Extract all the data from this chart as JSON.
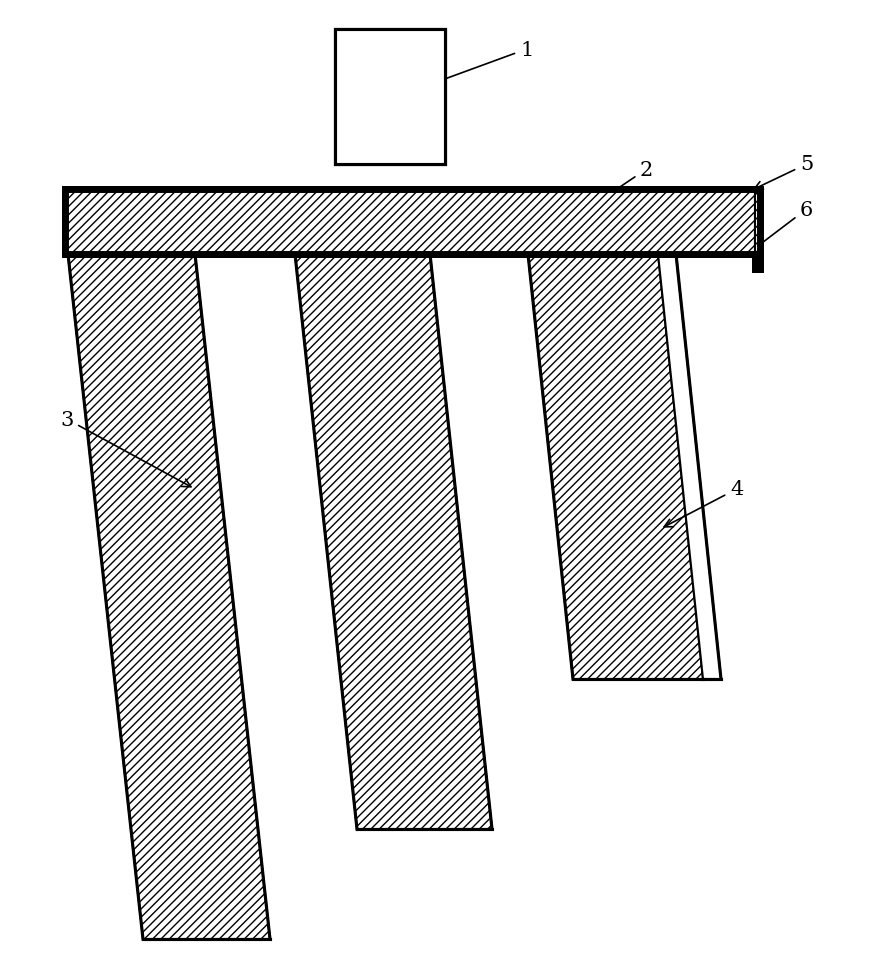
{
  "bg_color": "#ffffff",
  "line_color": "#000000",
  "hatch_pattern": "////",
  "lw": 1.5,
  "thick_lw": 5.0,
  "fig_width": 8.78,
  "fig_height": 9.79,
  "dpi": 100
}
